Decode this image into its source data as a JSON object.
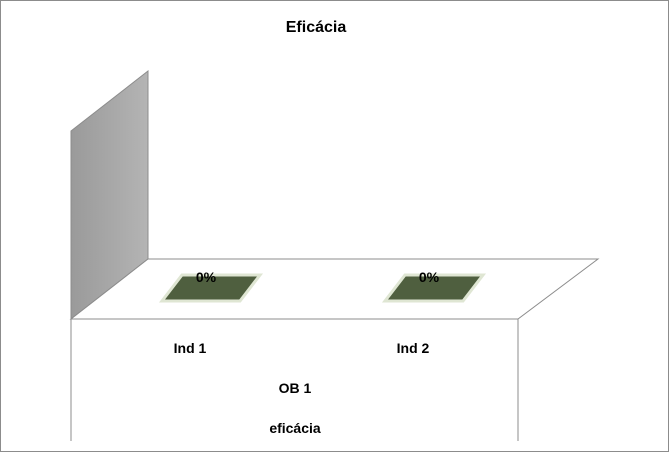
{
  "chart_data": {
    "type": "bar",
    "title": "Eficácia",
    "categories": [
      "Ind  1",
      "Ind  2"
    ],
    "category_group": "OB 1",
    "axis_title": "eficácia",
    "values": [
      0,
      0
    ],
    "data_labels": [
      "0%",
      "0%"
    ],
    "bar_color": "#4f5f3f",
    "wall_color": "#a6a6a6",
    "grid": false,
    "legend": "none"
  }
}
